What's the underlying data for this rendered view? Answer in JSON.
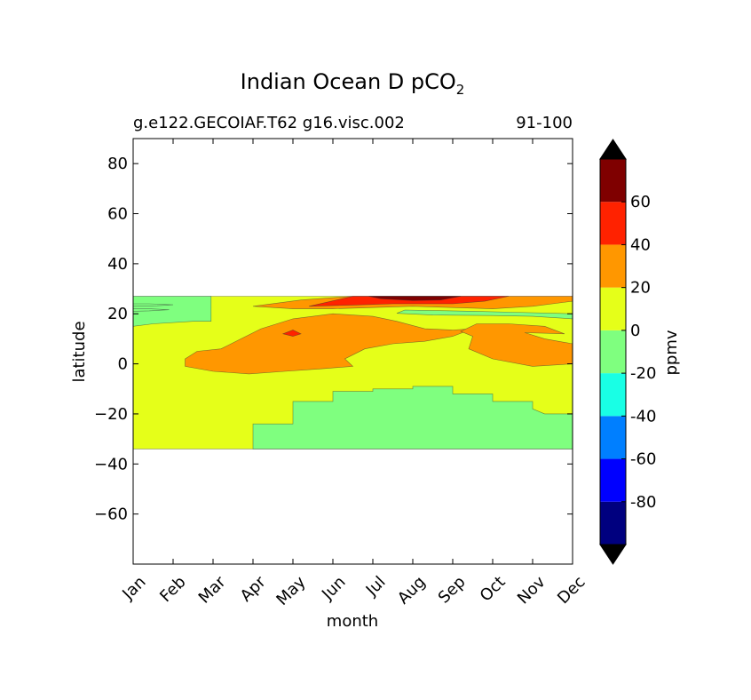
{
  "chart_data": {
    "type": "heatmap",
    "title_main": "Indian Ocean D pCO",
    "title_sub": "2",
    "subtitle_left": "g.e122.GECOIAF.T62 g16.visc.002",
    "subtitle_right": "91-100",
    "xlabel": "month",
    "ylabel": "latitude",
    "x_categories": [
      "Jan",
      "Feb",
      "Mar",
      "Apr",
      "May",
      "Jun",
      "Jul",
      "Aug",
      "Sep",
      "Oct",
      "Nov",
      "Dec"
    ],
    "xlim": [
      1,
      12
    ],
    "ylim": [
      -80,
      90
    ],
    "y_ticks": [
      80,
      60,
      40,
      20,
      0,
      -20,
      -40,
      -60
    ],
    "y_tick_labels": [
      "80",
      "60",
      "40",
      "20",
      "0",
      "−20",
      "−40",
      "−60"
    ],
    "data_lat_range": [
      -34,
      27
    ],
    "colorbar": {
      "label": "ppmv",
      "boundaries": [
        -100,
        -80,
        -60,
        -40,
        -20,
        0,
        20,
        40,
        60,
        80
      ],
      "colors": [
        "#00007f",
        "#0000ff",
        "#007fff",
        "#19ffe5",
        "#7fff7f",
        "#e5ff19",
        "#ff9700",
        "#ff2200",
        "#7f0000"
      ],
      "extend_low_color": "#000000",
      "extend_high_color": "#000000",
      "tick_values": [
        60,
        40,
        20,
        0,
        -20,
        -40,
        -60,
        -80
      ],
      "tick_labels": [
        "60",
        "40",
        "20",
        "0",
        "-20",
        "-40",
        "-60",
        "-80"
      ]
    },
    "levels": {
      "neg_green": "#7fff7f",
      "pos_yellow": "#e5ff19",
      "pos_orange": "#ff9700",
      "pos_red": "#ff2200",
      "pos_darkred": "#7f0000"
    },
    "regions": [
      {
        "name": "background-0-20",
        "level": "pos_yellow",
        "points": [
          [
            1,
            27
          ],
          [
            12,
            27
          ],
          [
            12,
            -34
          ],
          [
            1,
            -34
          ]
        ]
      },
      {
        "name": "southern-green",
        "level": "neg_green",
        "points": [
          [
            4,
            -34
          ],
          [
            4,
            -24
          ],
          [
            5,
            -24
          ],
          [
            5,
            -15
          ],
          [
            6,
            -15
          ],
          [
            6,
            -11
          ],
          [
            7,
            -11
          ],
          [
            7,
            -10
          ],
          [
            8,
            -10
          ],
          [
            8,
            -9
          ],
          [
            9,
            -9
          ],
          [
            9,
            -12
          ],
          [
            10,
            -12
          ],
          [
            10,
            -15
          ],
          [
            11,
            -15
          ],
          [
            11,
            -18
          ],
          [
            11.3,
            -20
          ],
          [
            12,
            -20
          ],
          [
            12,
            -34
          ]
        ]
      },
      {
        "name": "northwest-green",
        "level": "neg_green",
        "points": [
          [
            1,
            27
          ],
          [
            2.95,
            27
          ],
          [
            2.95,
            17
          ],
          [
            2.5,
            17
          ],
          [
            1.5,
            16
          ],
          [
            1,
            15
          ],
          [
            1,
            22
          ],
          [
            1.4,
            22
          ],
          [
            1.9,
            21.6
          ],
          [
            1.4,
            21.2
          ],
          [
            1,
            21
          ],
          [
            1,
            24
          ],
          [
            1.4,
            24
          ],
          [
            2,
            23.6
          ],
          [
            1.6,
            23.2
          ],
          [
            1,
            23
          ]
        ]
      },
      {
        "name": "northeast-green-strip",
        "level": "neg_green",
        "points": [
          [
            7.8,
            21.5
          ],
          [
            9.5,
            21
          ],
          [
            10.5,
            20.6
          ],
          [
            12,
            20
          ],
          [
            12,
            18
          ],
          [
            11,
            19
          ],
          [
            10,
            19.3
          ],
          [
            8.5,
            19.5
          ],
          [
            7.6,
            20.2
          ]
        ]
      },
      {
        "name": "central-orange",
        "level": "pos_orange",
        "points": [
          [
            2.3,
            2
          ],
          [
            2.6,
            5
          ],
          [
            3.2,
            6
          ],
          [
            3.7,
            10
          ],
          [
            4.2,
            14
          ],
          [
            5,
            18
          ],
          [
            6,
            20
          ],
          [
            7,
            19
          ],
          [
            7.6,
            17
          ],
          [
            8.3,
            14
          ],
          [
            9,
            13.5
          ],
          [
            9.5,
            14
          ],
          [
            9,
            11
          ],
          [
            8.3,
            9
          ],
          [
            7.5,
            8
          ],
          [
            6.8,
            6
          ],
          [
            6.3,
            2
          ],
          [
            6.5,
            -1
          ],
          [
            5.7,
            -2
          ],
          [
            4.8,
            -3
          ],
          [
            3.9,
            -4
          ],
          [
            3,
            -3
          ],
          [
            2.3,
            -1
          ]
        ]
      },
      {
        "name": "east-orange",
        "level": "pos_orange",
        "points": [
          [
            9.6,
            16
          ],
          [
            10.4,
            16
          ],
          [
            11.3,
            15
          ],
          [
            11.8,
            12
          ],
          [
            10.8,
            12.5
          ],
          [
            11.3,
            10
          ],
          [
            12,
            8
          ],
          [
            12,
            0
          ],
          [
            11,
            -1
          ],
          [
            10,
            2
          ],
          [
            9.4,
            6
          ],
          [
            9.5,
            11
          ],
          [
            9.2,
            13
          ]
        ]
      },
      {
        "name": "north-orange",
        "level": "pos_orange",
        "points": [
          [
            4,
            23
          ],
          [
            5.2,
            25.5
          ],
          [
            6.5,
            27
          ],
          [
            12,
            27
          ],
          [
            12,
            25
          ],
          [
            11,
            23
          ],
          [
            10,
            22
          ],
          [
            9,
            22.5
          ],
          [
            8,
            23
          ],
          [
            7,
            22.5
          ],
          [
            6,
            22
          ],
          [
            5,
            22
          ]
        ]
      },
      {
        "name": "north-red",
        "level": "pos_red",
        "points": [
          [
            5.4,
            23
          ],
          [
            6.5,
            27
          ],
          [
            10.4,
            27
          ],
          [
            9.8,
            25
          ],
          [
            9,
            24
          ],
          [
            7.5,
            24
          ],
          [
            6.5,
            23.5
          ]
        ]
      },
      {
        "name": "north-darkred",
        "level": "pos_darkred",
        "points": [
          [
            6.9,
            27
          ],
          [
            9.2,
            27
          ],
          [
            8.7,
            25.5
          ],
          [
            8,
            25.3
          ],
          [
            7.2,
            26
          ]
        ]
      },
      {
        "name": "may-red-spot",
        "level": "pos_red",
        "points": [
          [
            4.75,
            12
          ],
          [
            5,
            13.5
          ],
          [
            5.2,
            12
          ],
          [
            5,
            11
          ]
        ]
      }
    ]
  }
}
